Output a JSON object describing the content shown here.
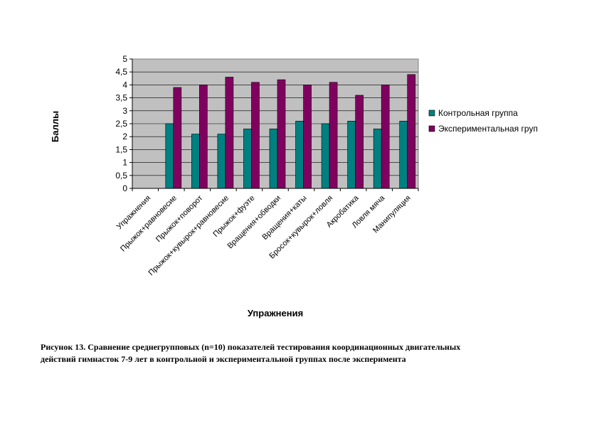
{
  "chart_data": {
    "type": "bar",
    "ylabel": "Баллы",
    "xlabel": "Упражнения",
    "ylim": [
      0,
      5
    ],
    "yticks": [
      "0",
      "0,5",
      "1",
      "1,5",
      "2",
      "2,5",
      "3",
      "3,5",
      "4",
      "4,5",
      "5"
    ],
    "grid": true,
    "legend_position": "right",
    "categories": [
      "Упражнения",
      "Прыжок+равновесие",
      "Прыжок+поворот",
      "Прыжок+кувырок+равновесие",
      "Прыжок+фуэте",
      "Вращения+обводки",
      "Вращения+каты",
      "Бросок+кувырок+ловля",
      "Акробатика",
      "Ловля мяча",
      "Манипуляция"
    ],
    "series": [
      {
        "name": "Контрольная группа",
        "color": "#008080",
        "values": [
          null,
          2.5,
          2.1,
          2.1,
          2.3,
          2.3,
          2.6,
          2.5,
          2.6,
          2.3,
          2.6
        ]
      },
      {
        "name": "Экспериментальная груп",
        "color": "#800060",
        "values": [
          null,
          3.9,
          4.0,
          4.3,
          4.1,
          4.2,
          4.0,
          4.1,
          3.6,
          4.0,
          4.4
        ]
      }
    ],
    "plot_background": "#c0c0c0"
  },
  "caption": {
    "line1": "Рисунок 13. Сравнение среднегрупповых (n=10) показателей тестирования координационных двигательных",
    "line2": "действий гимнасток 7-9 лет в контрольной и экспериментальной группах после эксперимента"
  }
}
